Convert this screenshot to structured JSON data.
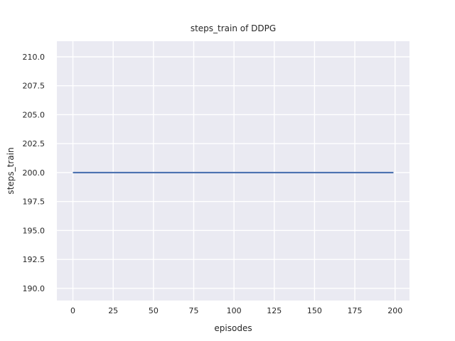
{
  "chart_data": {
    "type": "line",
    "title": "steps_train of DDPG",
    "xlabel": "episodes",
    "ylabel": "steps_train",
    "xlim": [
      -9.95,
      208.95
    ],
    "ylim": [
      188.95,
      211.35
    ],
    "xticks": [
      0,
      25,
      50,
      75,
      100,
      125,
      150,
      175,
      200
    ],
    "xtick_labels": [
      "0",
      "25",
      "50",
      "75",
      "100",
      "125",
      "150",
      "175",
      "200"
    ],
    "yticks": [
      190.0,
      192.5,
      195.0,
      197.5,
      200.0,
      202.5,
      205.0,
      207.5,
      210.0
    ],
    "ytick_labels": [
      "190.0",
      "192.5",
      "195.0",
      "197.5",
      "200.0",
      "202.5",
      "205.0",
      "207.5",
      "210.0"
    ],
    "grid": true,
    "legend": false,
    "series": [
      {
        "name": "steps_train",
        "color": "#4C72B0",
        "x": [
          0,
          199
        ],
        "y": [
          200,
          200
        ],
        "note": "constant value 200 across all episodes 0-199"
      }
    ],
    "style": {
      "figure_background": "#FFFFFF",
      "plot_background": "#EAEAF2",
      "grid_color": "#FFFFFF",
      "text_color": "#262626",
      "theme": "seaborn-darkgrid"
    }
  }
}
